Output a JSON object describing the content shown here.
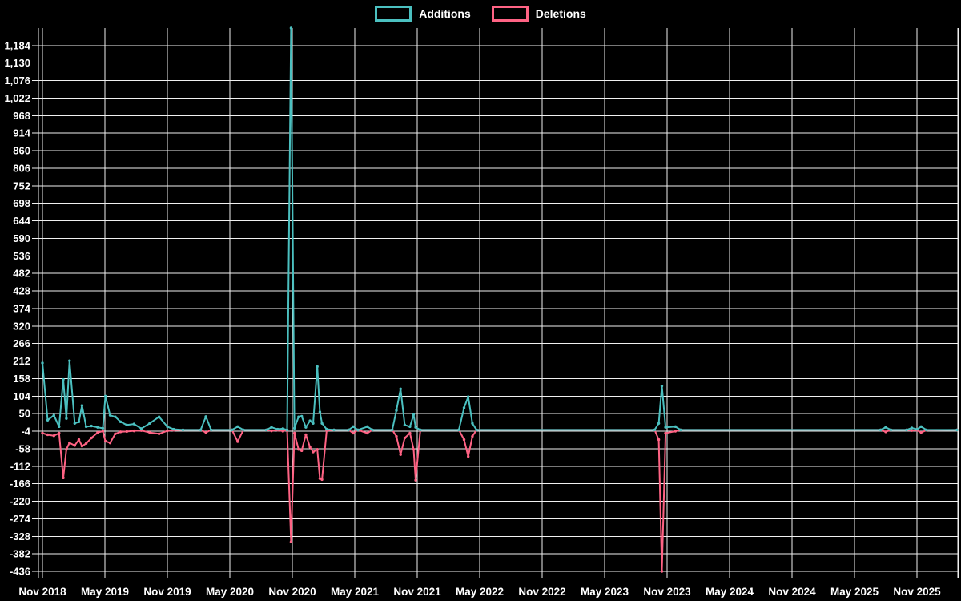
{
  "legend": {
    "items": [
      {
        "label": "Additions",
        "color": "#4bc0c0"
      },
      {
        "label": "Deletions",
        "color": "#ff6384"
      }
    ]
  },
  "colors": {
    "background": "#000000",
    "grid": "#f0f0f0",
    "axis": "#f0f0f0",
    "text": "#ffffff",
    "additions": "#4bc0c0",
    "deletions": "#ff6384"
  },
  "chart_data": {
    "type": "line",
    "title": "",
    "xlabel": "",
    "ylabel": "",
    "legend_position": "top",
    "grid": true,
    "x_unit": "months since Nov 2018",
    "x_tick_labels": [
      "Nov 2018",
      "May 2019",
      "Nov 2019",
      "May 2020",
      "Nov 2020",
      "May 2021",
      "Nov 2021",
      "May 2022",
      "Nov 2022",
      "May 2023",
      "Nov 2023",
      "May 2024",
      "Nov 2024",
      "May 2025",
      "Nov 2025"
    ],
    "x_tick_positions": [
      0,
      6,
      12,
      18,
      24,
      30,
      36,
      42,
      48,
      54,
      60,
      66,
      72,
      78,
      84
    ],
    "x_range": [
      0,
      87.9
    ],
    "y_axis": {
      "min": -436,
      "max": 1238,
      "tick_step": 54,
      "first_tick": -436,
      "last_tick": 1184
    },
    "y_tick_labels": [
      "1,184",
      "1,130",
      "1,076",
      "1,022",
      "968",
      "914",
      "860",
      "806",
      "752",
      "698",
      "644",
      "590",
      "536",
      "482",
      "428",
      "374",
      "320",
      "266",
      "212",
      "158",
      "104",
      "50",
      "-4",
      "-58",
      "-112",
      "-166",
      "-220",
      "-274",
      "-328",
      "-382",
      "-436"
    ],
    "x": [
      0,
      0.5,
      1.1,
      1.6,
      2.0,
      2.3,
      2.6,
      3.1,
      3.5,
      3.8,
      4.2,
      4.7,
      5.3,
      5.8,
      6.05,
      6.5,
      7.0,
      7.5,
      8.1,
      8.8,
      9.5,
      10.3,
      11.2,
      12.0,
      12.6,
      13.5,
      15.2,
      15.7,
      16.2,
      18.2,
      18.75,
      19.3,
      21.5,
      22.0,
      22.6,
      23.1,
      23.5,
      23.88,
      24.2,
      24.6,
      24.9,
      25.3,
      25.7,
      26.0,
      26.4,
      26.65,
      26.85,
      27.3,
      28.0,
      29.4,
      29.85,
      30.3,
      31.2,
      31.7,
      33.6,
      34.0,
      34.4,
      34.8,
      35.3,
      35.65,
      35.85,
      36.3,
      40.0,
      40.5,
      40.9,
      41.3,
      41.7,
      58.8,
      59.2,
      59.5,
      59.85,
      60.8,
      61.3,
      80.5,
      81.0,
      81.5,
      83.0,
      83.5,
      84.0,
      84.4,
      84.9,
      87.9
    ],
    "series": [
      {
        "name": "Additions",
        "color": "#4bc0c0",
        "values": [
          206,
          30,
          45,
          10,
          155,
          35,
          213,
          20,
          25,
          75,
          10,
          12,
          8,
          5,
          104,
          45,
          40,
          25,
          15,
          18,
          4,
          20,
          40,
          10,
          2,
          0,
          0,
          41,
          0,
          0,
          10,
          0,
          0,
          8,
          2,
          4,
          0,
          1238,
          5,
          40,
          42,
          8,
          28,
          20,
          195,
          55,
          20,
          2,
          0,
          0,
          10,
          0,
          10,
          0,
          0,
          60,
          126,
          15,
          10,
          47,
          8,
          0,
          0,
          68,
          102,
          20,
          0,
          0,
          20,
          135,
          8,
          10,
          0,
          0,
          8,
          0,
          0,
          6,
          2,
          10,
          0,
          0
        ]
      },
      {
        "name": "Deletions",
        "color": "#ff6384",
        "values": [
          -10,
          -15,
          -18,
          -10,
          -148,
          -60,
          -40,
          -48,
          -30,
          -50,
          -42,
          -25,
          -8,
          -4,
          -35,
          -40,
          -12,
          -6,
          -5,
          -3,
          -2,
          -8,
          -12,
          -3,
          -1,
          0,
          0,
          -8,
          0,
          0,
          -36,
          0,
          0,
          -3,
          -1,
          -4,
          0,
          -345,
          -10,
          -60,
          -64,
          -15,
          -53,
          -68,
          -60,
          -150,
          -153,
          -2,
          0,
          0,
          -10,
          0,
          -10,
          0,
          0,
          -20,
          -76,
          -25,
          -10,
          -60,
          -155,
          0,
          0,
          -30,
          -82,
          -20,
          0,
          0,
          -30,
          -436,
          -10,
          -4,
          0,
          0,
          -6,
          0,
          0,
          -2,
          -1,
          -8,
          -1,
          0
        ]
      }
    ]
  }
}
